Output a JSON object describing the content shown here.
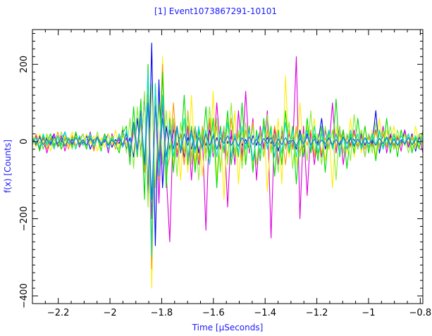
{
  "chart_data": {
    "type": "line",
    "title": "[1] Event1073867291-10101",
    "xlabel": "Time [μSeconds]",
    "ylabel": "f(x) [Counts]",
    "xlim": [
      -2.3,
      -0.79
    ],
    "ylim": [
      -420,
      290
    ],
    "x_ticks_major": [
      -2.2,
      -2,
      -1.8,
      -1.6,
      -1.4,
      -1.2,
      -1,
      -0.8
    ],
    "x_tick_labels": [
      "−2.2",
      "−2",
      "−1.8",
      "−1.6",
      "−1.4",
      "−1.2",
      "−1",
      "−0.8"
    ],
    "y_ticks_major": [
      -400,
      -200,
      0,
      200
    ],
    "y_tick_labels": [
      "−400",
      "−200",
      "0",
      "200"
    ],
    "grid": false,
    "legend": "none",
    "series": [
      {
        "color": "#0000ee",
        "values": [
          5,
          -10,
          15,
          -20,
          10,
          -5,
          20,
          -15,
          0,
          25,
          -10,
          5,
          -15,
          10,
          -5,
          15,
          -20,
          5,
          10,
          -10,
          0,
          20,
          -15,
          5,
          -5,
          30,
          -20,
          10,
          -40,
          60,
          -30,
          120,
          -140,
          255,
          -270,
          160,
          -120,
          40,
          -20,
          30,
          -10,
          20,
          -40,
          10,
          -20,
          40,
          -30,
          20,
          -10,
          30,
          -20,
          10,
          -15,
          25,
          -5,
          15,
          -30,
          20,
          -10,
          5,
          -20,
          15,
          -10,
          30,
          -15,
          10,
          -5,
          20,
          -25,
          15,
          -10,
          0,
          10,
          -20,
          30,
          -15,
          20,
          -10,
          15,
          -5,
          60,
          -20,
          10,
          -15,
          20,
          -10,
          30,
          -25,
          10,
          5,
          -15,
          20,
          -10,
          15,
          -5,
          80,
          -30,
          20,
          -10,
          15,
          -20,
          10,
          -5,
          30,
          -15,
          20,
          -25,
          10,
          0
        ]
      },
      {
        "color": "#dd00dd",
        "values": [
          -5,
          15,
          -20,
          10,
          -30,
          5,
          20,
          -10,
          15,
          -25,
          10,
          -5,
          20,
          -15,
          5,
          -10,
          25,
          -20,
          10,
          -5,
          15,
          -30,
          20,
          -10,
          5,
          -15,
          10,
          -40,
          30,
          -20,
          60,
          -80,
          140,
          -200,
          120,
          -160,
          100,
          -80,
          -260,
          60,
          -40,
          20,
          -60,
          40,
          -100,
          30,
          -60,
          20,
          -230,
          60,
          -40,
          100,
          -20,
          40,
          -170,
          30,
          -60,
          80,
          -40,
          130,
          -30,
          60,
          -100,
          40,
          -20,
          80,
          -250,
          40,
          -60,
          30,
          -20,
          20,
          -20,
          220,
          -200,
          40,
          -140,
          30,
          -60,
          20,
          -40,
          30,
          -20,
          100,
          -30,
          40,
          -60,
          20,
          -10,
          30,
          -20,
          15,
          -40,
          20,
          -10,
          30,
          -20,
          40,
          -30,
          20,
          -10,
          15,
          -25,
          30,
          -15,
          10,
          -20,
          20,
          -30,
          15,
          5
        ]
      },
      {
        "color": "#ffee00",
        "values": [
          10,
          -15,
          20,
          -5,
          15,
          -25,
          10,
          5,
          -20,
          15,
          -10,
          25,
          -15,
          5,
          -10,
          20,
          -5,
          15,
          -25,
          10,
          -15,
          20,
          -10,
          30,
          -20,
          15,
          -5,
          -30,
          40,
          -20,
          80,
          -60,
          160,
          -380,
          140,
          -100,
          220,
          -120,
          80,
          -60,
          40,
          -100,
          60,
          -80,
          120,
          -60,
          40,
          -90,
          20,
          -60,
          130,
          -100,
          40,
          -150,
          60,
          -40,
          80,
          -110,
          30,
          -60,
          40,
          -70,
          20,
          -30,
          50,
          -130,
          30,
          -40,
          60,
          -110,
          170,
          -40,
          20,
          -60,
          100,
          -30,
          40,
          -20,
          60,
          -40,
          20,
          -50,
          30,
          -120,
          40,
          -20,
          30,
          -30,
          60,
          -40,
          20,
          -30,
          40,
          -20,
          30,
          -40,
          60,
          -20,
          30,
          -10,
          40,
          -20,
          30,
          -10,
          20,
          -20,
          40,
          -15,
          25,
          -10,
          30
        ]
      },
      {
        "color": "#ff9900",
        "values": [
          -10,
          20,
          -5,
          15,
          -20,
          10,
          -15,
          25,
          -5,
          10,
          -20,
          15,
          -10,
          5,
          20,
          -15,
          10,
          -25,
          15,
          -5,
          20,
          -10,
          5,
          -20,
          15,
          -10,
          25,
          -15,
          30,
          -40,
          50,
          -80,
          120,
          -330,
          140,
          -60,
          200,
          -80,
          -40,
          100,
          -30,
          20,
          -60,
          80,
          -40,
          20,
          -50,
          40,
          -30,
          60,
          -20,
          40,
          -70,
          20,
          -40,
          60,
          -30,
          20,
          -50,
          30,
          -20,
          50,
          -60,
          20,
          -40,
          30,
          -20,
          40,
          -10,
          20,
          -60,
          30,
          -20,
          40,
          -30,
          20,
          -10,
          30,
          -40,
          20,
          -30,
          10,
          -20,
          30,
          -15,
          20,
          -25,
          10,
          -15,
          20,
          -10,
          30,
          -20,
          10,
          -15,
          25,
          -10,
          20,
          -15,
          10,
          -20,
          15,
          -10,
          20,
          -5,
          15,
          -10,
          20,
          -5
        ]
      },
      {
        "color": "#00dd00",
        "values": [
          0,
          10,
          -25,
          15,
          -5,
          20,
          -10,
          15,
          -20,
          5,
          10,
          -15,
          25,
          -10,
          5,
          -20,
          15,
          -5,
          10,
          -25,
          20,
          -10,
          15,
          -5,
          -30,
          20,
          40,
          -60,
          90,
          -40,
          110,
          -150,
          200,
          -280,
          150,
          -80,
          180,
          -120,
          60,
          -80,
          40,
          -30,
          120,
          -60,
          40,
          -80,
          30,
          -20,
          90,
          -40,
          60,
          -120,
          40,
          -30,
          80,
          -60,
          20,
          -40,
          100,
          -60,
          40,
          -80,
          30,
          -50,
          60,
          -20,
          40,
          -90,
          30,
          -60,
          80,
          -30,
          40,
          -110,
          20,
          -40,
          60,
          -30,
          20,
          -50,
          40,
          -80,
          30,
          -20,
          110,
          -40,
          30,
          -70,
          20,
          -30,
          60,
          -20,
          40,
          -30,
          20,
          -50,
          30,
          -20,
          60,
          -30,
          20,
          -40,
          30,
          -10,
          20,
          -30,
          10,
          -20,
          30,
          -10,
          20
        ]
      },
      {
        "color": "#88ee33",
        "values": [
          15,
          -5,
          10,
          -20,
          20,
          -10,
          5,
          -15,
          25,
          -10,
          10,
          -20,
          15,
          -5,
          20,
          -15,
          5,
          -10,
          25,
          -20,
          10,
          -5,
          15,
          -10,
          -20,
          40,
          -30,
          60,
          -70,
          90,
          -40,
          130,
          -170,
          150,
          -120,
          100,
          -60,
          80,
          -40,
          60,
          -90,
          50,
          -30,
          70,
          -60,
          40,
          -100,
          30,
          -50,
          90,
          -30,
          60,
          -80,
          40,
          -60,
          100,
          -40,
          30,
          -70,
          50,
          -20,
          40,
          -60,
          30,
          -40,
          70,
          -30,
          20,
          -80,
          40,
          -20,
          50,
          -70,
          30,
          -40,
          20,
          -50,
          80,
          -30,
          20,
          -60,
          40,
          -20,
          30,
          -100,
          40,
          -30,
          20,
          -50,
          70,
          -20,
          30,
          -40,
          20,
          -30,
          50,
          -20,
          30,
          -10,
          40,
          -20,
          30,
          -10,
          20,
          -30,
          10,
          -20,
          20,
          -10,
          30
        ]
      },
      {
        "color": "#00dddd",
        "values": [
          -5,
          10,
          -15,
          20,
          -10,
          5,
          -20,
          15,
          -10,
          25,
          -5,
          10,
          -20,
          15,
          -10,
          5,
          20,
          -15,
          10,
          -5,
          15,
          -20,
          10,
          -10,
          20,
          -15,
          30,
          -20,
          40,
          -30,
          60,
          -50,
          180,
          -300,
          150,
          -90,
          120,
          -70,
          50,
          -40,
          30,
          -20,
          60,
          -40,
          20,
          -30,
          40,
          -20,
          30,
          -60,
          20,
          -40,
          30,
          -20,
          50,
          -40,
          20,
          -30,
          40,
          -20,
          30,
          -50,
          20,
          -30,
          40,
          -20,
          30,
          -40,
          20,
          -30,
          50,
          -20,
          30,
          -40,
          20,
          -10,
          30,
          -20,
          40,
          -30,
          20,
          -10,
          30,
          -20,
          20,
          -30,
          10,
          -20,
          30,
          -10,
          20,
          -20,
          10,
          -15,
          20,
          -10,
          30,
          -20,
          10,
          -15,
          20,
          -10,
          15,
          -5,
          20,
          -10,
          15,
          -5,
          10
        ]
      },
      {
        "color": "#1e6fd0",
        "values": [
          8,
          -6,
          10,
          -8,
          5,
          -10,
          12,
          -5,
          8,
          -12,
          6,
          -8,
          10,
          -6,
          4,
          -10,
          8,
          -5,
          12,
          -8,
          6,
          -10,
          4,
          -6,
          10,
          -8,
          20,
          -30,
          50,
          -20,
          80,
          -60,
          100,
          -150,
          90,
          -50,
          60,
          -40,
          30,
          -20,
          40,
          -30,
          20,
          -10,
          30,
          -20,
          10,
          -15,
          20,
          -10,
          15,
          -20,
          10,
          -5,
          15,
          -10,
          8,
          -12,
          10,
          -6,
          12,
          -8,
          6,
          -10,
          8,
          -5,
          10,
          -12,
          6,
          -8,
          10,
          -6,
          4,
          -10,
          8,
          -5,
          12,
          -8,
          6,
          -10,
          4,
          -6,
          10,
          -8,
          5,
          -10,
          12,
          -5,
          8,
          -12,
          6,
          -8,
          10,
          -6,
          4,
          -10,
          8,
          -5,
          12,
          -8,
          6,
          -10,
          4,
          -6,
          10,
          -8,
          5
        ]
      }
    ]
  }
}
